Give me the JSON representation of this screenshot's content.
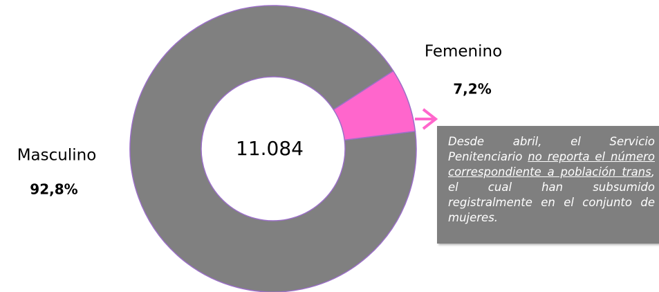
{
  "chart_data": {
    "type": "donut",
    "categories": [
      "Masculino",
      "Femenino"
    ],
    "values": [
      92.8,
      7.2
    ],
    "value_labels": [
      "92,8%",
      "7,2%"
    ],
    "colors": [
      "#808080",
      "#ff66cc"
    ],
    "center_label": "11.084",
    "annotation": [
      "Desde abril, el Servicio Penitenciario ",
      "no reporta el número correspondiente a población trans",
      ", el cual han subsumido registralmente en el conjunto de mujeres."
    ]
  }
}
